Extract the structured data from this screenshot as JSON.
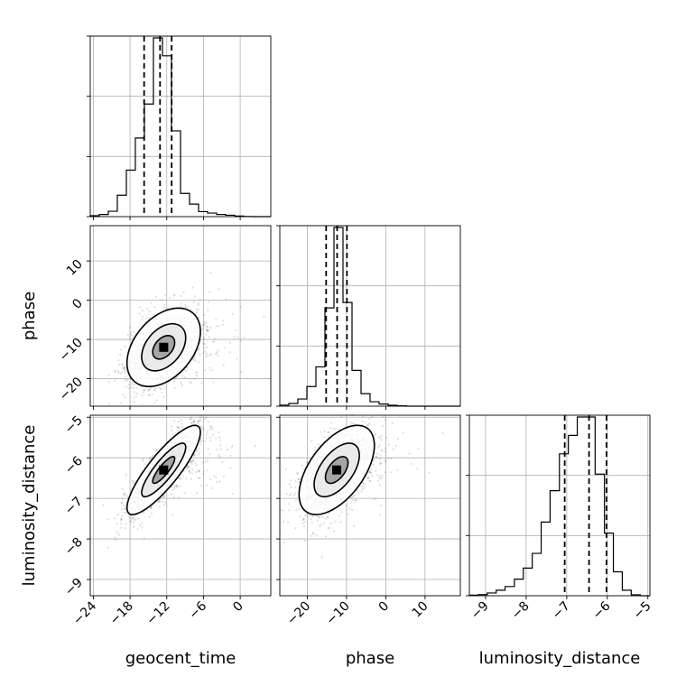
{
  "chart_data": {
    "type": "corner",
    "parameters": [
      "geocent_time",
      "phase",
      "luminosity_distance"
    ],
    "axes": {
      "geocent_time": {
        "range": [
          -24.5,
          5
        ],
        "ticks": [
          -24,
          -18,
          -12,
          -6,
          0
        ],
        "tick_labels": [
          "−24",
          "−18",
          "−12",
          "−6",
          "0"
        ],
        "label": "geocent_time"
      },
      "phase": {
        "range": [
          -27,
          19
        ],
        "ticks_x": [
          -20,
          -10,
          0,
          10
        ],
        "ticks_x_labels": [
          "−20",
          "−10",
          "0",
          "10"
        ],
        "ticks_y": [
          -20,
          -10,
          0,
          10
        ],
        "ticks_y_labels": [
          "−20",
          "−10",
          "0",
          "10"
        ],
        "label": "phase"
      },
      "luminosity_distance": {
        "range": [
          -9.4,
          -4.95
        ],
        "ticks_x": [
          -9,
          -8,
          -7,
          -6,
          -5
        ],
        "ticks_x_labels": [
          "−9",
          "−8",
          "−7",
          "−6",
          "−5"
        ],
        "ticks_y": [
          -9,
          -8,
          -7,
          -6,
          -5
        ],
        "ticks_y_labels": [
          "−9",
          "−8",
          "−7",
          "−6",
          "−5"
        ],
        "label": "luminosity_distance"
      }
    },
    "histograms": {
      "geocent_time": {
        "bin_edges": [
          -24.5,
          -23.03,
          -21.55,
          -20.08,
          -18.6,
          -17.13,
          -15.65,
          -14.18,
          -12.7,
          -11.23,
          -9.75,
          -8.28,
          -6.8,
          -5.33,
          -3.85,
          -2.38,
          -0.9,
          0.58,
          2.05,
          3.53,
          5
        ],
        "counts": [
          0.5,
          1.2,
          3,
          12,
          26,
          44,
          63,
          100,
          90,
          48,
          13,
          7,
          2.8,
          2,
          1.2,
          0.8,
          0.3,
          0.1,
          0,
          0
        ],
        "quantiles": [
          -15.7,
          -13.1,
          -11.2
        ]
      },
      "phase": {
        "bin_edges": [
          -27,
          -24.7,
          -22.4,
          -20.1,
          -17.8,
          -15.5,
          -13.2,
          -10.9,
          -8.6,
          -6.3,
          -4,
          -1.7,
          0.6,
          2.9,
          5.2,
          7.5,
          9.8,
          12.1,
          14.4,
          16.7,
          19
        ],
        "counts": [
          0.6,
          1.5,
          4,
          11,
          22,
          55,
          100,
          58,
          20,
          7,
          2.5,
          1.2,
          0.5,
          0.2,
          0,
          0,
          0,
          0,
          0,
          0
        ],
        "quantiles": [
          -15.2,
          -12.4,
          -9.9
        ]
      },
      "luminosity_distance": {
        "bin_edges": [
          -9.4,
          -9.18,
          -8.96,
          -8.74,
          -8.52,
          -8.29,
          -8.07,
          -7.85,
          -7.63,
          -7.41,
          -7.18,
          -6.96,
          -6.74,
          -6.52,
          -6.3,
          -6.07,
          -5.85,
          -5.63,
          -5.41,
          -5.19,
          -4.95
        ],
        "counts": [
          0.3,
          0.6,
          1.5,
          3,
          5,
          9,
          15,
          23,
          40,
          57,
          77,
          87,
          97,
          97,
          66,
          34,
          13,
          3,
          0.5,
          0
        ],
        "quantiles": [
          -7.05,
          -6.45,
          -6.02
        ]
      }
    },
    "scatter_2d": [
      {
        "x": "geocent_time",
        "y": "phase",
        "center": [
          -12.5,
          -12
        ],
        "spread": [
          3,
          5
        ],
        "correlation": 0.4
      },
      {
        "x": "geocent_time",
        "y": "luminosity_distance",
        "center": [
          -12.5,
          -6.3
        ],
        "spread": [
          3,
          0.55
        ],
        "correlation": 0.85
      },
      {
        "x": "phase",
        "y": "luminosity_distance",
        "center": [
          -12.5,
          -6.3
        ],
        "spread": [
          4.8,
          0.55
        ],
        "correlation": 0.55
      }
    ],
    "grid": true
  }
}
